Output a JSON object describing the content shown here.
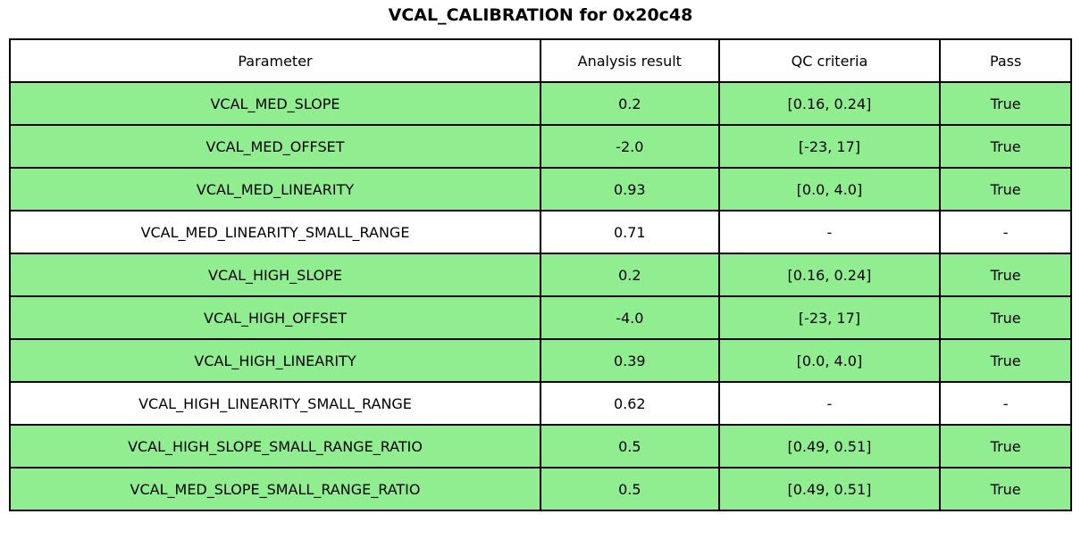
{
  "chart_data": {
    "type": "table",
    "title": "VCAL_CALIBRATION for 0x20c48",
    "columns": [
      "Parameter",
      "Analysis result",
      "QC criteria",
      "Pass"
    ],
    "rows": [
      {
        "parameter": "VCAL_MED_SLOPE",
        "result": "0.2",
        "qc": "[0.16, 0.24]",
        "pass": "True",
        "passed": true
      },
      {
        "parameter": "VCAL_MED_OFFSET",
        "result": "-2.0",
        "qc": "[-23, 17]",
        "pass": "True",
        "passed": true
      },
      {
        "parameter": "VCAL_MED_LINEARITY",
        "result": "0.93",
        "qc": "[0.0, 4.0]",
        "pass": "True",
        "passed": true
      },
      {
        "parameter": "VCAL_MED_LINEARITY_SMALL_RANGE",
        "result": "0.71",
        "qc": "-",
        "pass": "-",
        "passed": false
      },
      {
        "parameter": "VCAL_HIGH_SLOPE",
        "result": "0.2",
        "qc": "[0.16, 0.24]",
        "pass": "True",
        "passed": true
      },
      {
        "parameter": "VCAL_HIGH_OFFSET",
        "result": "-4.0",
        "qc": "[-23, 17]",
        "pass": "True",
        "passed": true
      },
      {
        "parameter": "VCAL_HIGH_LINEARITY",
        "result": "0.39",
        "qc": "[0.0, 4.0]",
        "pass": "True",
        "passed": true
      },
      {
        "parameter": "VCAL_HIGH_LINEARITY_SMALL_RANGE",
        "result": "0.62",
        "qc": "-",
        "pass": "-",
        "passed": false
      },
      {
        "parameter": "VCAL_HIGH_SLOPE_SMALL_RANGE_RATIO",
        "result": "0.5",
        "qc": "[0.49, 0.51]",
        "pass": "True",
        "passed": true
      },
      {
        "parameter": "VCAL_MED_SLOPE_SMALL_RANGE_RATIO",
        "result": "0.5",
        "qc": "[0.49, 0.51]",
        "pass": "True",
        "passed": true
      }
    ],
    "legend_position": "none",
    "grid": "full-cell-borders"
  },
  "colors": {
    "pass_row_green": "#90ee90",
    "no_qc_row_white": "#ffffff",
    "border_black": "#000000",
    "text_black": "#000000",
    "background_white": "#ffffff"
  }
}
